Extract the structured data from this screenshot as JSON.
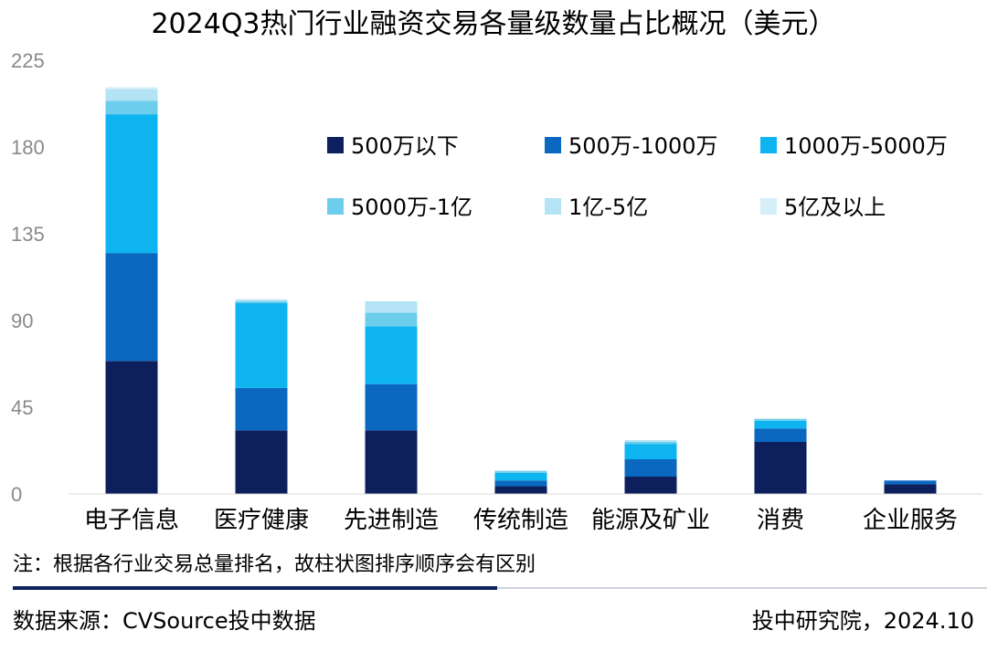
{
  "chart_data": {
    "type": "bar",
    "stacked": true,
    "title": "2024Q3热门行业融资交易各量级数量占比概况（美元）",
    "categories": [
      "电子信息",
      "医疗健康",
      "先进制造",
      "传统制造",
      "能源及矿业",
      "消费",
      "企业服务"
    ],
    "ylim": [
      0,
      225
    ],
    "yticks": [
      0,
      45,
      90,
      135,
      180,
      225
    ],
    "legend_position": "top-right",
    "grid": false,
    "series": [
      {
        "name": "500万以下",
        "color": "#0d1f5c",
        "values": [
          69,
          33,
          33,
          4,
          9,
          27,
          5
        ]
      },
      {
        "name": "500万-1000万",
        "color": "#0a68c0",
        "values": [
          56,
          22,
          24,
          3,
          9,
          7,
          2
        ]
      },
      {
        "name": "1000万-5000万",
        "color": "#0db4f0",
        "values": [
          72,
          44,
          30,
          4,
          8,
          4,
          0
        ]
      },
      {
        "name": "5000万-1亿",
        "color": "#6dcdec",
        "values": [
          7,
          1,
          7,
          1,
          1,
          1,
          0
        ]
      },
      {
        "name": "1亿-5亿",
        "color": "#b3e3f5",
        "values": [
          6,
          1,
          6,
          0,
          1,
          0,
          0
        ]
      },
      {
        "name": "5亿及以上",
        "color": "#d5eef8",
        "values": [
          1,
          0,
          0,
          0,
          0,
          0,
          0
        ]
      }
    ]
  },
  "note": "注：根据各行业交易总量排名，故柱状图排序顺序会有区别",
  "footer": {
    "source": "数据来源：CVSource投中数据",
    "credit": "投中研究院，2024.10"
  }
}
